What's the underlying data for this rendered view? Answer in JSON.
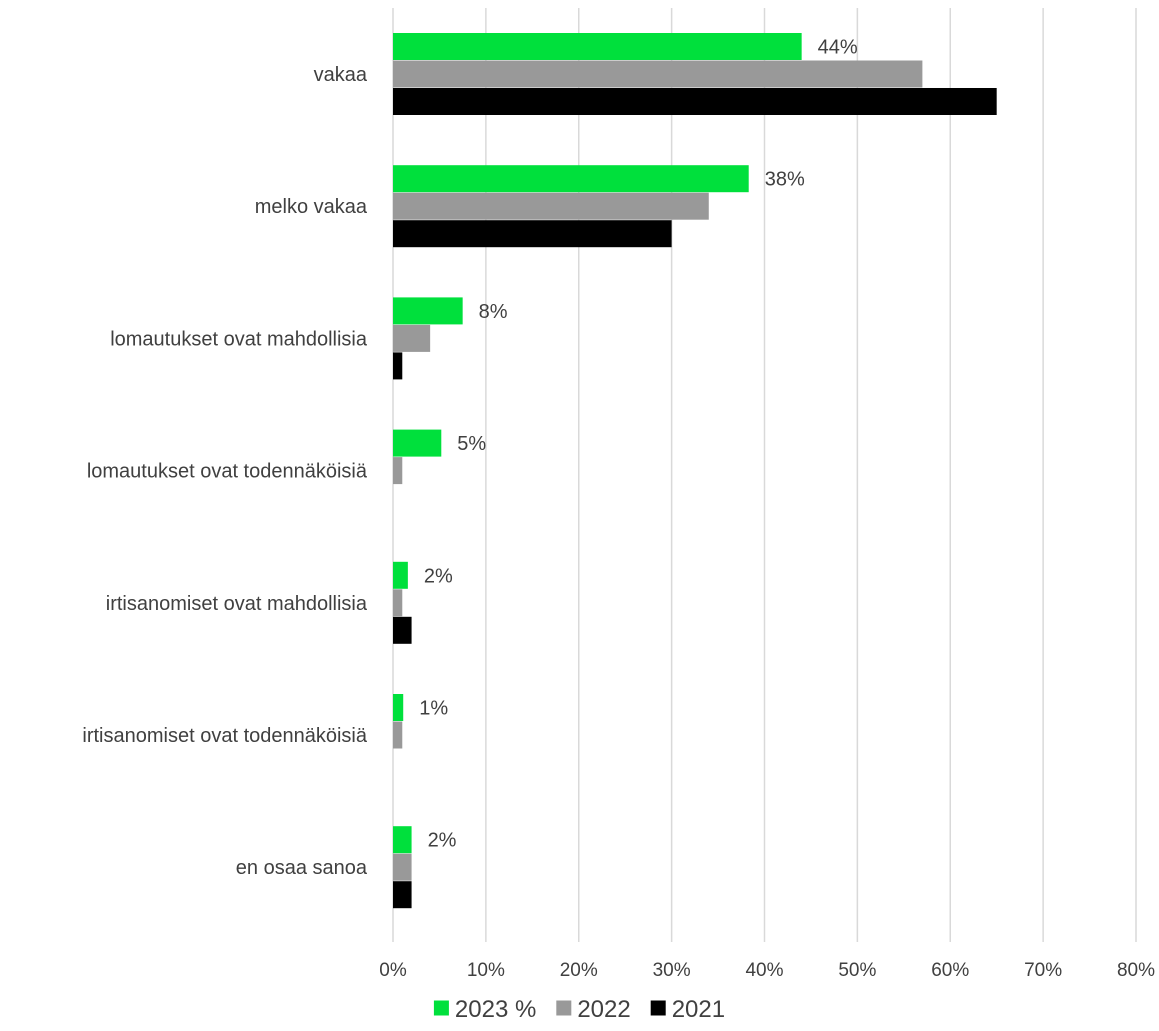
{
  "chart_data": {
    "type": "bar",
    "orientation": "horizontal",
    "title": "",
    "xlabel": "",
    "ylabel": "",
    "categories": [
      "vakaa",
      "melko vakaa",
      "lomautukset ovat mahdollisia",
      "lomautukset ovat todennäköisiä",
      "irtisanomiset ovat mahdollisia",
      "irtisanomiset ovat todennäköisiä",
      "en osaa sanoa"
    ],
    "series": [
      {
        "name": "2023 %",
        "color": "#00e03c",
        "values": [
          44,
          38.3,
          7.5,
          5.2,
          1.6,
          1.1,
          2.0
        ],
        "data_labels": [
          "44%",
          "38%",
          "8%",
          "5%",
          "2%",
          "1%",
          "2%"
        ]
      },
      {
        "name": "2022",
        "color": "#999999",
        "values": [
          57,
          34,
          4,
          1,
          1,
          1,
          2
        ],
        "data_labels": []
      },
      {
        "name": "2021",
        "color": "#000000",
        "values": [
          65,
          30,
          1,
          0,
          2,
          0,
          2
        ],
        "data_labels": []
      }
    ],
    "xlim": [
      0,
      80
    ],
    "xticks": [
      0,
      10,
      20,
      30,
      40,
      50,
      60,
      70,
      80
    ],
    "xtick_labels": [
      "0%",
      "10%",
      "20%",
      "30%",
      "40%",
      "50%",
      "60%",
      "70%",
      "80%"
    ],
    "grid": "vertical",
    "legend_position": "bottom-center"
  }
}
